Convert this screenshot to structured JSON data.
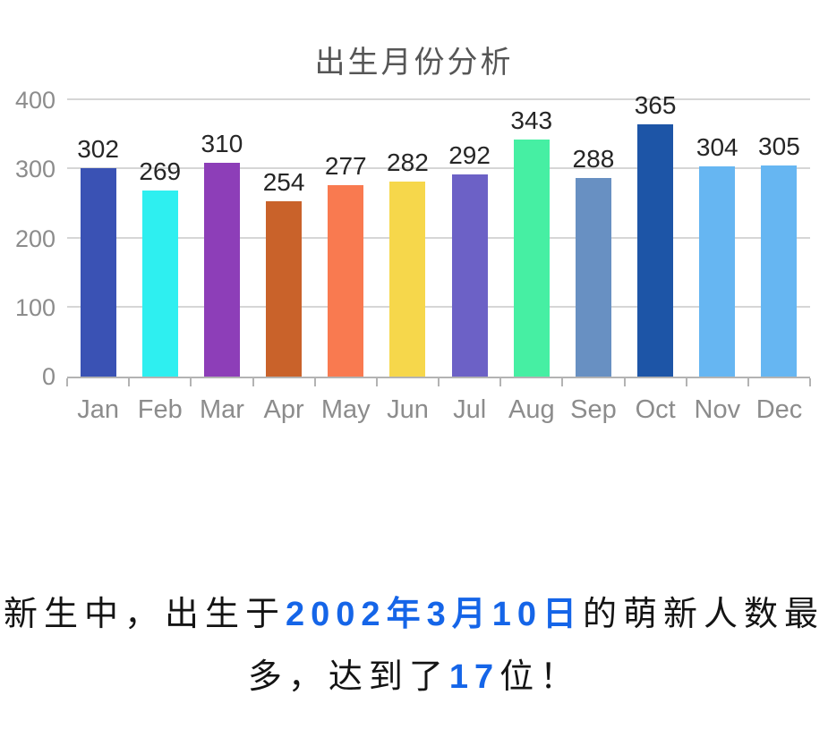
{
  "chart": {
    "title": "出生月份分析",
    "title_color": "#565656"
  },
  "chart_data": {
    "type": "bar",
    "title": "出生月份分析",
    "categories": [
      "Jan",
      "Feb",
      "Mar",
      "Apr",
      "May",
      "Jun",
      "Jul",
      "Aug",
      "Sep",
      "Oct",
      "Nov",
      "Dec"
    ],
    "values": [
      302,
      269,
      310,
      254,
      277,
      282,
      292,
      343,
      288,
      365,
      304,
      305
    ],
    "bar_colors": [
      "#3a52b4",
      "#2eeff0",
      "#8d3eb8",
      "#c9622a",
      "#f97a50",
      "#f6d74b",
      "#6c61c6",
      "#46efa3",
      "#6890c2",
      "#1d55a7",
      "#66b6f2",
      "#66b6f2"
    ],
    "xlabel": "",
    "ylabel": "",
    "ylim": [
      0,
      400
    ],
    "yticks": [
      0,
      100,
      200,
      300,
      400
    ],
    "grid": true,
    "legend": "none",
    "value_labels": true,
    "axis_label_color": "#8c8c8c",
    "value_label_color": "#262626"
  },
  "caption": {
    "text_color": "#141414",
    "highlight_color": "#1565e8",
    "lines": [
      [
        {
          "text": "新生中，出生于",
          "highlight": false
        },
        {
          "text": "2002年3月10日",
          "highlight": true
        },
        {
          "text": "的萌新人数最",
          "highlight": false
        }
      ],
      [
        {
          "text": "多，达到了",
          "highlight": false
        },
        {
          "text": "17",
          "highlight": true
        },
        {
          "text": "位！",
          "highlight": false
        }
      ]
    ]
  }
}
